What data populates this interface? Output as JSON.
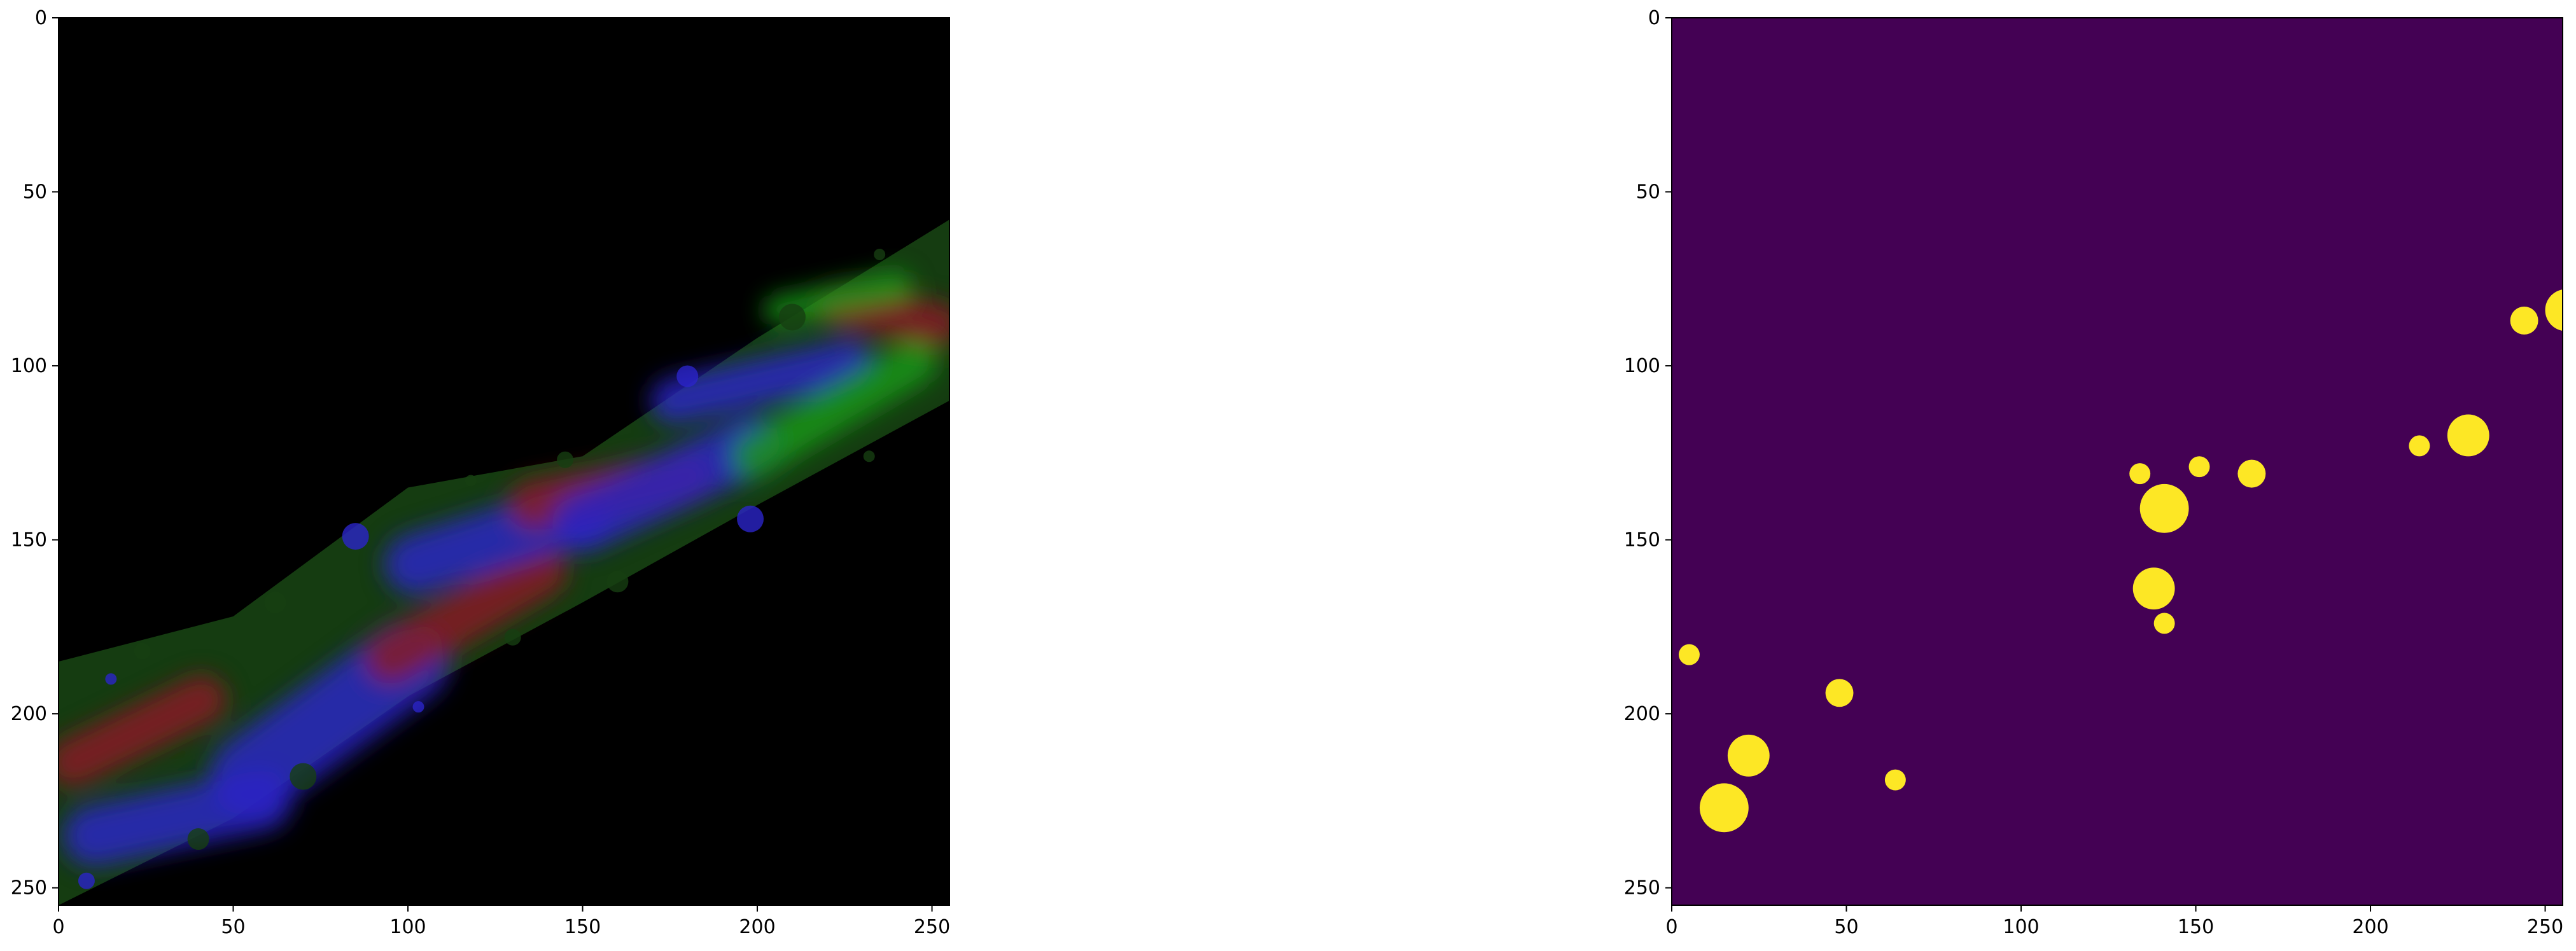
{
  "figure": {
    "background": "#ffffff"
  },
  "chart_data": [
    {
      "type": "heatmap",
      "description_kind": "rgb-image",
      "x_ticks": [
        0,
        50,
        100,
        150,
        200,
        250
      ],
      "y_ticks": [
        0,
        50,
        100,
        150,
        200,
        250
      ],
      "x_tick_labels": [
        "0",
        "50",
        "100",
        "150",
        "200",
        "250"
      ],
      "y_tick_labels": [
        "0",
        "50",
        "100",
        "150",
        "200",
        "250"
      ],
      "xlim": [
        0,
        255
      ],
      "ylim": [
        255,
        0
      ],
      "background_color": "#000000",
      "band": {
        "upper_edge": [
          [
            0,
            185
          ],
          [
            50,
            172
          ],
          [
            100,
            135
          ],
          [
            150,
            126
          ],
          [
            200,
            92
          ],
          [
            255,
            58
          ]
        ],
        "lower_edge": [
          [
            0,
            255
          ],
          [
            50,
            230
          ],
          [
            100,
            195
          ],
          [
            150,
            168
          ],
          [
            200,
            140
          ],
          [
            255,
            110
          ]
        ]
      },
      "colors": {
        "red": "#8a1c24",
        "green": "#1d9a1a",
        "blue": "#2a24c8",
        "dark_green": "#163f12"
      }
    },
    {
      "type": "heatmap",
      "description_kind": "binary-mask",
      "x_ticks": [
        0,
        50,
        100,
        150,
        200,
        250
      ],
      "y_ticks": [
        0,
        50,
        100,
        150,
        200,
        250
      ],
      "x_tick_labels": [
        "0",
        "50",
        "100",
        "150",
        "200",
        "250"
      ],
      "y_tick_labels": [
        "0",
        "50",
        "100",
        "150",
        "200",
        "250"
      ],
      "xlim": [
        0,
        255
      ],
      "ylim": [
        255,
        0
      ],
      "background_color": "#440154",
      "foreground_color": "#fde725",
      "blobs": [
        {
          "x": 15,
          "y": 227,
          "r": 7
        },
        {
          "x": 22,
          "y": 212,
          "r": 6
        },
        {
          "x": 5,
          "y": 183,
          "r": 3
        },
        {
          "x": 48,
          "y": 194,
          "r": 4
        },
        {
          "x": 64,
          "y": 219,
          "r": 3
        },
        {
          "x": 134,
          "y": 131,
          "r": 3
        },
        {
          "x": 141,
          "y": 141,
          "r": 7
        },
        {
          "x": 151,
          "y": 129,
          "r": 3
        },
        {
          "x": 166,
          "y": 131,
          "r": 4
        },
        {
          "x": 138,
          "y": 164,
          "r": 6
        },
        {
          "x": 141,
          "y": 174,
          "r": 3
        },
        {
          "x": 214,
          "y": 123,
          "r": 3
        },
        {
          "x": 228,
          "y": 120,
          "r": 6
        },
        {
          "x": 244,
          "y": 87,
          "r": 4
        },
        {
          "x": 256,
          "y": 84,
          "r": 6
        }
      ]
    }
  ]
}
